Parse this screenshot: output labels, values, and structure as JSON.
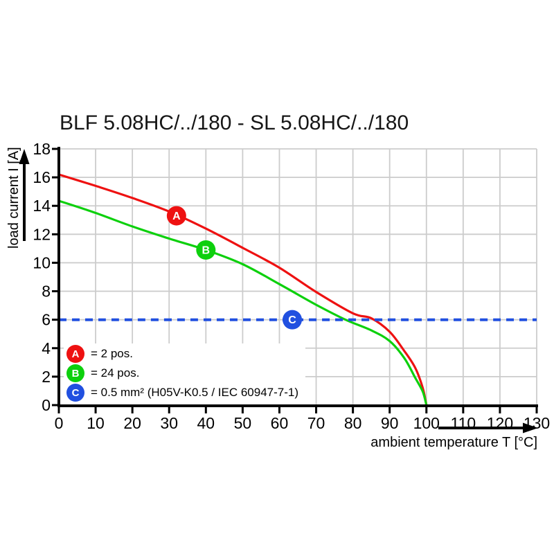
{
  "page": {
    "background": "#ffffff"
  },
  "chart_data": {
    "type": "line",
    "title": "BLF 5.08HC/../180 - SL 5.08HC/../180",
    "xlabel": "ambient temperature T [°C]",
    "ylabel": "load current I [A]",
    "xlim": [
      0,
      130
    ],
    "ylim": [
      0,
      18
    ],
    "x_ticks": [
      0,
      10,
      20,
      30,
      40,
      50,
      60,
      70,
      80,
      90,
      100,
      110,
      120,
      130
    ],
    "y_ticks": [
      0,
      2,
      4,
      6,
      8,
      10,
      12,
      14,
      16,
      18
    ],
    "grid": true,
    "grid_color": "#cccccc",
    "axis_color": "#000000",
    "series": [
      {
        "name": "A",
        "label": "2 pos.",
        "color": "#ee1111",
        "style": "solid",
        "points": [
          [
            0,
            16.2
          ],
          [
            10,
            15.4
          ],
          [
            20,
            14.55
          ],
          [
            30,
            13.6
          ],
          [
            40,
            12.4
          ],
          [
            50,
            11.05
          ],
          [
            60,
            9.65
          ],
          [
            70,
            7.95
          ],
          [
            80,
            6.45
          ],
          [
            85,
            6.1
          ],
          [
            90,
            5.15
          ],
          [
            94,
            3.8
          ],
          [
            97,
            2.6
          ],
          [
            99,
            1.2
          ],
          [
            100,
            0
          ]
        ]
      },
      {
        "name": "B",
        "label": "24 pos.",
        "color": "#0dd00d",
        "style": "solid",
        "points": [
          [
            0,
            14.35
          ],
          [
            10,
            13.5
          ],
          [
            20,
            12.55
          ],
          [
            30,
            11.7
          ],
          [
            40,
            10.9
          ],
          [
            50,
            9.9
          ],
          [
            60,
            8.5
          ],
          [
            70,
            7.05
          ],
          [
            78,
            6.0
          ],
          [
            85,
            5.25
          ],
          [
            90,
            4.5
          ],
          [
            94,
            3.3
          ],
          [
            97,
            1.9
          ],
          [
            99,
            0.95
          ],
          [
            100,
            0
          ]
        ]
      },
      {
        "name": "C",
        "label": "0.5 mm² (H05V-K0.5 / IEC 60947-7-1)",
        "color": "#2150e0",
        "style": "dashed",
        "points": [
          [
            0,
            6
          ],
          [
            130,
            6
          ]
        ]
      }
    ],
    "markers": [
      {
        "label": "A",
        "x": 32,
        "y": 13.3,
        "color": "#ee1111"
      },
      {
        "label": "B",
        "x": 40,
        "y": 10.9,
        "color": "#0dd00d"
      },
      {
        "label": "C",
        "x": 63.5,
        "y": 6,
        "color": "#2150e0"
      }
    ]
  },
  "legend": {
    "items": [
      {
        "letter": "A",
        "text": "= 2 pos.",
        "color": "#ee1111"
      },
      {
        "letter": "B",
        "text": "= 24 pos.",
        "color": "#0dd00d"
      },
      {
        "letter": "C",
        "text": "= 0.5 mm² (H05V-K0.5 / IEC 60947-7-1)",
        "color": "#2150e0"
      }
    ]
  }
}
